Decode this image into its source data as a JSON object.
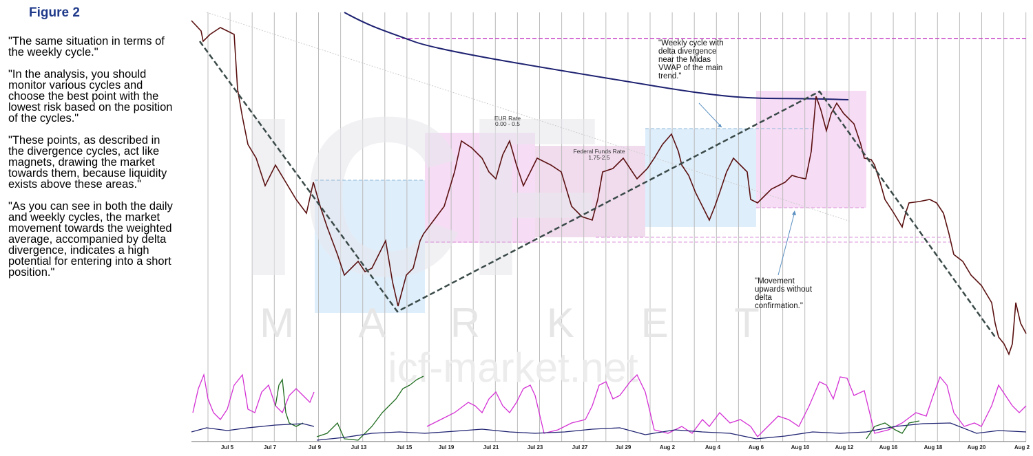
{
  "figure_label": "Figure 2",
  "paragraphs": [
    "\"The same situation in terms of the weekly cycle.\"",
    "\"In the analysis, you should monitor various cycles and choose the best point with the lowest risk based on the position of the cycles.\"",
    "\"These points, as described in the divergence cycles, act like magnets, drawing the market towards them, because liquidity exists above these areas.\"",
    "\"As you can see in both the daily and weekly cycles, the market movement towards the weighted average, accompanied by delta divergence, indicates a high potential for entering into a short position.\""
  ],
  "chart": {
    "boxes": [
      {
        "title": "EUR Rate",
        "range": "0.00 - 0.5"
      },
      {
        "title": "Federal Funds Rate",
        "range": "1.75-2.5"
      }
    ],
    "annotations": [
      "\"Weekly cycle with delta divergence near the Midas VWAP of the main trend.\"",
      "\"Movement upwards without delta confirmation.\""
    ],
    "x_labels": [
      "Jul 5",
      "Jul 7",
      "Jul 9",
      "Jul 13",
      "Jul 15",
      "Jul 19",
      "Jul 21",
      "Jul 23",
      "Jul 27",
      "Jul 29",
      "Aug 2",
      "Aug 4",
      "Aug 6",
      "Aug 10",
      "Aug 12",
      "Aug 16",
      "Aug 18",
      "Aug 20",
      "Aug 2"
    ],
    "watermark": [
      "ICF",
      "M A R K E T",
      "icf-market.net"
    ]
  }
}
